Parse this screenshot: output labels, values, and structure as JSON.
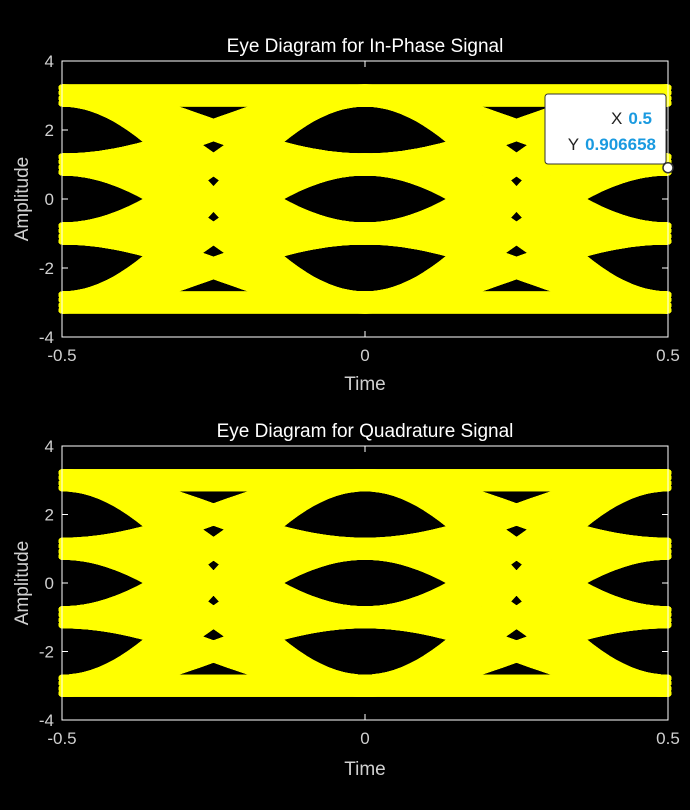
{
  "chart_data": [
    {
      "type": "line",
      "title": "Eye Diagram for In-Phase Signal",
      "xlabel": "Time",
      "ylabel": "Amplitude",
      "xlim": [
        -0.5,
        0.5
      ],
      "ylim": [
        -4,
        4
      ],
      "x_ticks": [
        "-0.5",
        "0",
        "0.5"
      ],
      "y_ticks": [
        "-4",
        "-2",
        "0",
        "2",
        "4"
      ],
      "levels": [
        -3,
        -1,
        1,
        3
      ],
      "trace_color": "#ffff00",
      "background": "#000000",
      "grid": false,
      "datatip": {
        "x_label": "X",
        "x_value": "0.5",
        "y_label": "Y",
        "y_value": "0.906658",
        "x": 0.5,
        "y": 0.906658,
        "value_color": "#1a9ae0"
      }
    },
    {
      "type": "line",
      "title": "Eye Diagram for Quadrature Signal",
      "xlabel": "Time",
      "ylabel": "Amplitude",
      "xlim": [
        -0.5,
        0.5
      ],
      "ylim": [
        -4,
        4
      ],
      "x_ticks": [
        "-0.5",
        "0",
        "0.5"
      ],
      "y_ticks": [
        "-4",
        "-2",
        "0",
        "2",
        "4"
      ],
      "levels": [
        -3,
        -1,
        1,
        3
      ],
      "trace_color": "#ffff00",
      "background": "#000000",
      "grid": false
    }
  ]
}
